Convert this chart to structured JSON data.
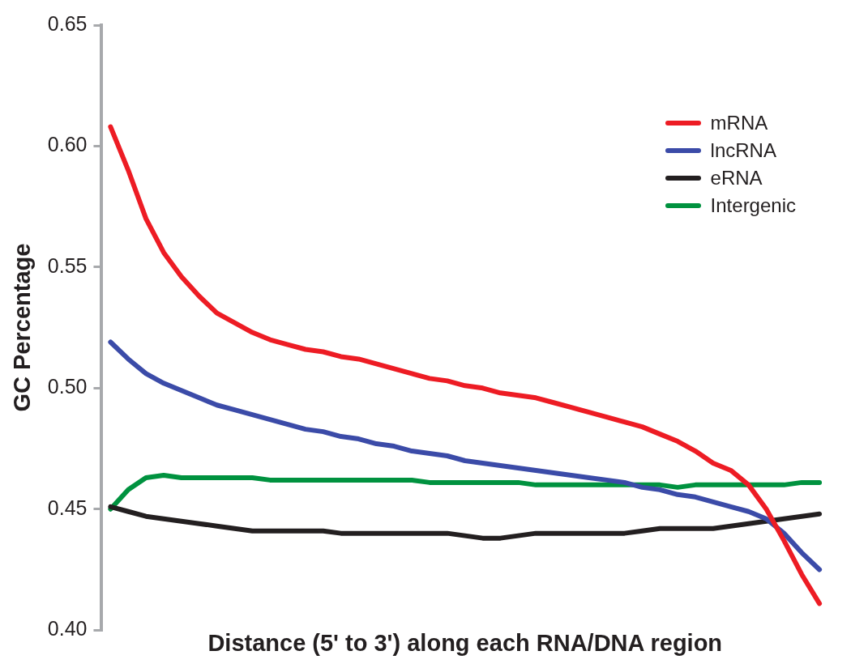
{
  "chart_data": {
    "type": "line",
    "xlabel": "Distance (5' to 3') along each RNA/DNA region",
    "ylabel": "GC Percentage",
    "categories": [
      null,
      null,
      null,
      null,
      null,
      null,
      null,
      null,
      null,
      null,
      null,
      null,
      null,
      null,
      null,
      null,
      null,
      null,
      null,
      null,
      null,
      null,
      null,
      null,
      null,
      null,
      null,
      null,
      null,
      null,
      null,
      null,
      null,
      null,
      null,
      null,
      null,
      null,
      null,
      null,
      null
    ],
    "series": [
      {
        "name": "mRNA",
        "color": "#ed1c24",
        "values": [
          0.608,
          0.59,
          0.57,
          0.556,
          0.546,
          0.538,
          0.531,
          0.527,
          0.523,
          0.52,
          0.518,
          0.516,
          0.515,
          0.513,
          0.512,
          0.51,
          0.508,
          0.506,
          0.504,
          0.503,
          0.501,
          0.5,
          0.498,
          0.497,
          0.496,
          0.494,
          0.492,
          0.49,
          0.488,
          0.486,
          0.484,
          0.481,
          0.478,
          0.474,
          0.469,
          0.466,
          0.46,
          0.45,
          0.437,
          0.423,
          0.411
        ]
      },
      {
        "name": "lncRNA",
        "color": "#3b4ba8",
        "values": [
          0.519,
          0.512,
          0.506,
          0.502,
          0.499,
          0.496,
          0.493,
          0.491,
          0.489,
          0.487,
          0.485,
          0.483,
          0.482,
          0.48,
          0.479,
          0.477,
          0.476,
          0.474,
          0.473,
          0.472,
          0.47,
          0.469,
          0.468,
          0.467,
          0.466,
          0.465,
          0.464,
          0.463,
          0.462,
          0.461,
          0.459,
          0.458,
          0.456,
          0.455,
          0.453,
          0.451,
          0.449,
          0.446,
          0.44,
          0.432,
          0.425
        ]
      },
      {
        "name": "eRNA",
        "color": "#231f20",
        "values": [
          0.451,
          0.449,
          0.447,
          0.446,
          0.445,
          0.444,
          0.443,
          0.442,
          0.441,
          0.441,
          0.441,
          0.441,
          0.441,
          0.44,
          0.44,
          0.44,
          0.44,
          0.44,
          0.44,
          0.44,
          0.439,
          0.438,
          0.438,
          0.439,
          0.44,
          0.44,
          0.44,
          0.44,
          0.44,
          0.44,
          0.441,
          0.442,
          0.442,
          0.442,
          0.442,
          0.443,
          0.444,
          0.445,
          0.446,
          0.447,
          0.448
        ]
      },
      {
        "name": "Intergenic",
        "color": "#00923f",
        "values": [
          0.45,
          0.458,
          0.463,
          0.464,
          0.463,
          0.463,
          0.463,
          0.463,
          0.463,
          0.462,
          0.462,
          0.462,
          0.462,
          0.462,
          0.462,
          0.462,
          0.462,
          0.462,
          0.461,
          0.461,
          0.461,
          0.461,
          0.461,
          0.461,
          0.46,
          0.46,
          0.46,
          0.46,
          0.46,
          0.46,
          0.46,
          0.46,
          0.459,
          0.46,
          0.46,
          0.46,
          0.46,
          0.46,
          0.46,
          0.461,
          0.461
        ]
      }
    ],
    "ylim": [
      0.4,
      0.65
    ],
    "yticks": [
      {
        "value": 0.4,
        "label": "0.40"
      },
      {
        "value": 0.45,
        "label": "0.45"
      },
      {
        "value": 0.5,
        "label": "0.50"
      },
      {
        "value": 0.55,
        "label": "0.55"
      },
      {
        "value": 0.6,
        "label": "0.60"
      },
      {
        "value": 0.65,
        "label": "0.65"
      }
    ],
    "tick_labels": "y",
    "grid": false,
    "legend": "top right",
    "marker": "none",
    "line_style": "solid"
  }
}
